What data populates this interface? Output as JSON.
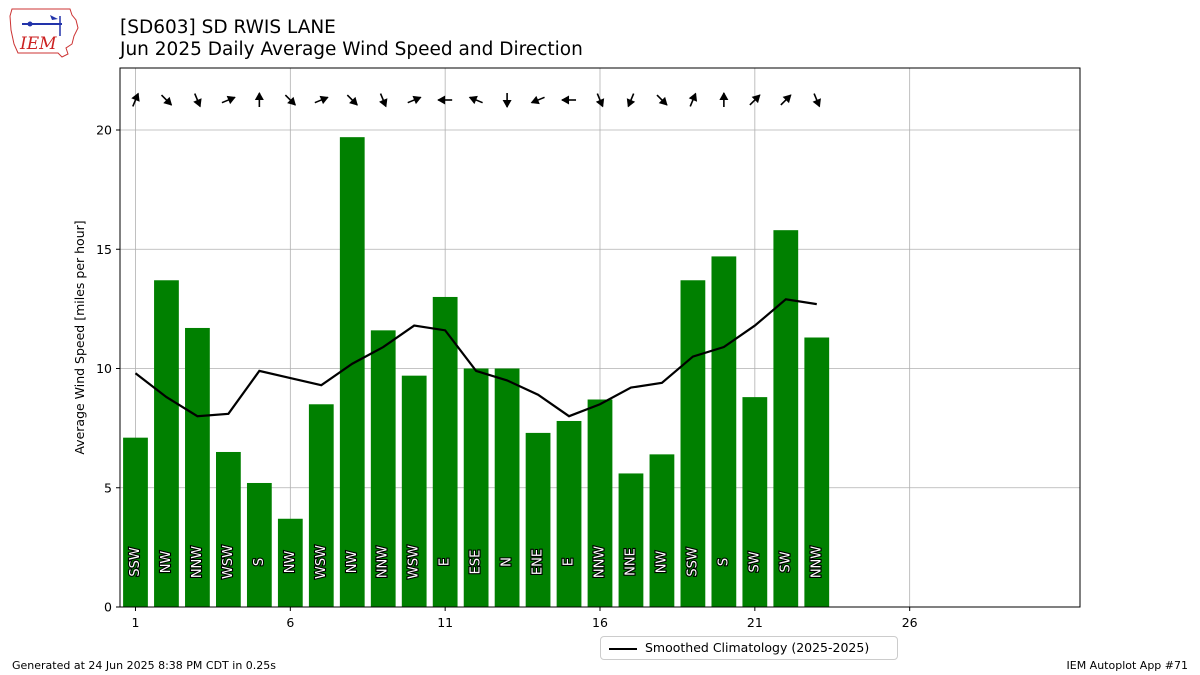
{
  "header": {
    "title_line1": "[SD603] SD RWIS LANE",
    "title_line2": "Jun 2025 Daily Average Wind Speed and Direction"
  },
  "logo": {
    "text": "IEM",
    "icon": "iem-logo"
  },
  "footer": {
    "left": "Generated at 24 Jun 2025 8:38 PM CDT in 0.25s",
    "right": "IEM Autoplot App #71"
  },
  "legend": {
    "label": "Smoothed Climatology (2025-2025)"
  },
  "colors": {
    "bar": "#008000",
    "line": "#000000",
    "grid": "#b0b0b0",
    "arrow": "#000000"
  },
  "chart_data": {
    "type": "bar",
    "ylabel": "Average Wind Speed [miles per hour]",
    "xlabel": "",
    "xlim": [
      0.5,
      31.5
    ],
    "ylim": [
      0,
      22.6
    ],
    "xticks": [
      1,
      6,
      11,
      16,
      21,
      26
    ],
    "yticks": [
      0,
      5,
      10,
      15,
      20
    ],
    "grid": true,
    "legend_position": "bottom-center",
    "days": [
      1,
      2,
      3,
      4,
      5,
      6,
      7,
      8,
      9,
      10,
      11,
      12,
      13,
      14,
      15,
      16,
      17,
      18,
      19,
      20,
      21,
      22,
      23
    ],
    "speeds": [
      7.1,
      13.7,
      11.7,
      6.5,
      5.2,
      3.7,
      8.5,
      19.7,
      11.6,
      9.7,
      13.0,
      10.0,
      10.0,
      7.3,
      7.8,
      8.7,
      5.6,
      6.4,
      13.7,
      14.7,
      8.8,
      15.8,
      11.3
    ],
    "directions": [
      "SSW",
      "NW",
      "NNW",
      "WSW",
      "S",
      "NW",
      "WSW",
      "NW",
      "NNW",
      "WSW",
      "E",
      "ESE",
      "N",
      "ENE",
      "E",
      "NNW",
      "NNE",
      "NW",
      "SSW",
      "S",
      "SW",
      "SW",
      "NNW"
    ],
    "series": [
      {
        "name": "Smoothed Climatology (2025-2025)",
        "x": [
          1,
          2,
          3,
          4,
          5,
          6,
          7,
          8,
          9,
          10,
          11,
          12,
          13,
          14,
          15,
          16,
          17,
          18,
          19,
          20,
          21,
          22,
          23
        ],
        "values": [
          9.8,
          8.8,
          8.0,
          8.1,
          9.9,
          9.6,
          9.3,
          10.2,
          10.9,
          11.8,
          11.6,
          9.9,
          9.5,
          8.9,
          8.0,
          8.5,
          9.2,
          9.4,
          10.5,
          10.9,
          11.8,
          12.9,
          12.7
        ]
      }
    ]
  }
}
